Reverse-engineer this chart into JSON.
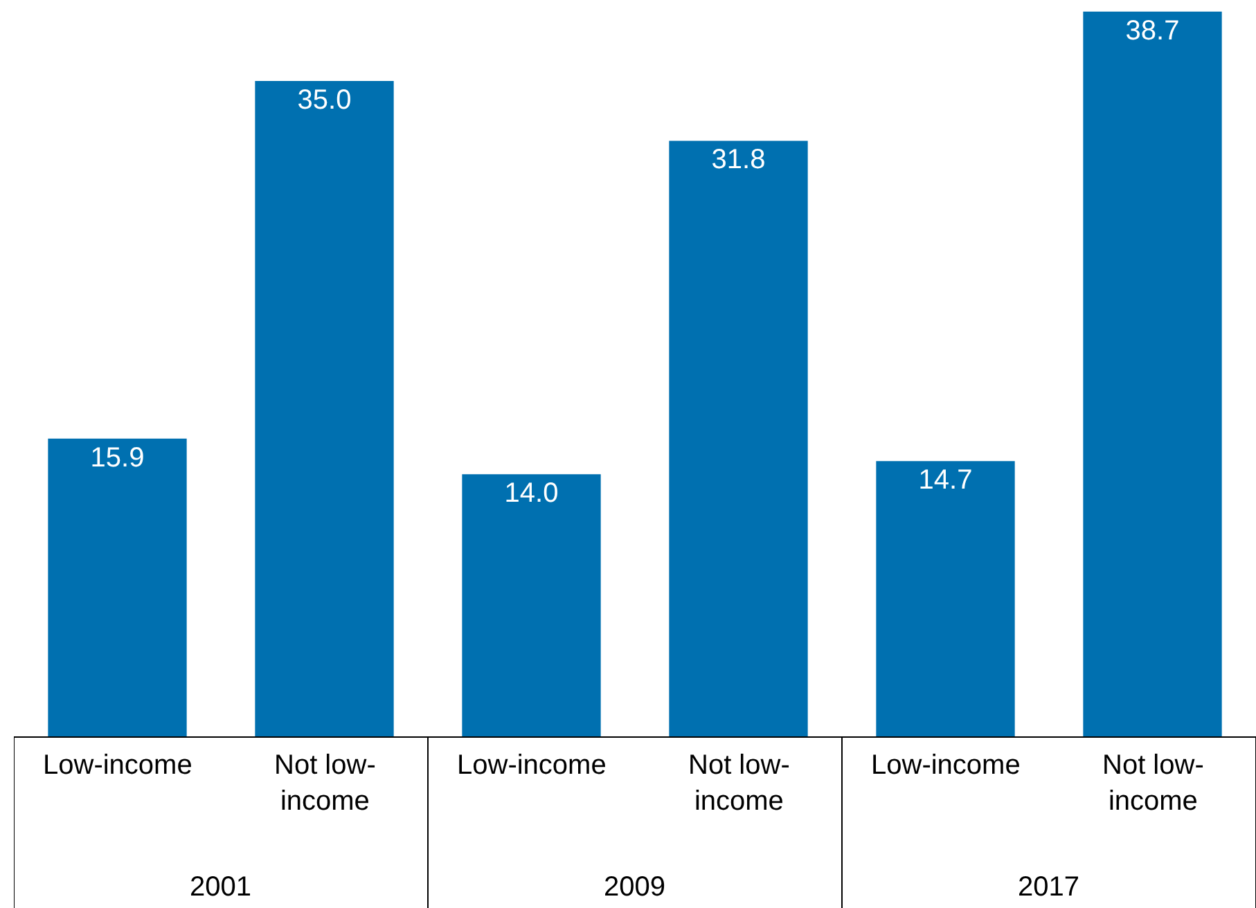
{
  "chart_data": {
    "type": "bar",
    "categories": [
      "Low-income",
      "Not low-income",
      "Low-income",
      "Not low-income",
      "Low-income",
      "Not low-income"
    ],
    "values": [
      15.9,
      35.0,
      14.0,
      31.8,
      14.7,
      38.7
    ],
    "color": "#0070b0",
    "value_labels": [
      "15.9",
      "35.0",
      "14.0",
      "31.8",
      "14.7",
      "38.7"
    ],
    "annotations": [
      "2001",
      "2009",
      "2017"
    ]
  }
}
